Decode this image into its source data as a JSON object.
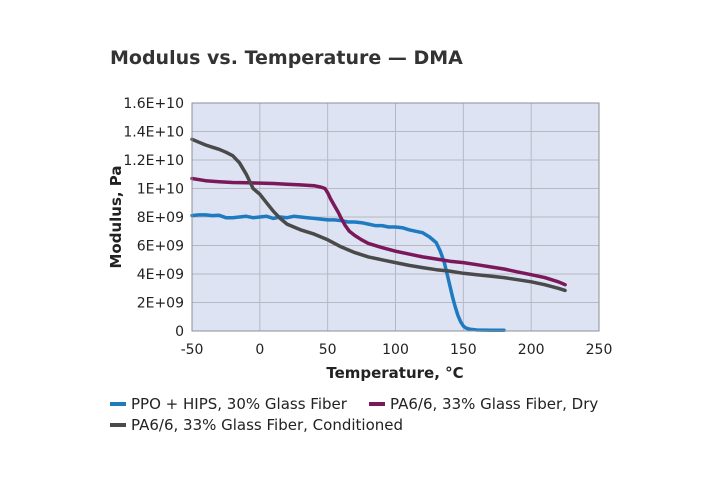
{
  "chart_data": {
    "type": "line",
    "title": "Modulus vs. Temperature — DMA",
    "xlabel": "Temperature, °C",
    "ylabel": "Modulus, Pa",
    "xlim": [
      -50,
      250
    ],
    "ylim": [
      0,
      16000000000
    ],
    "grid": true,
    "legend_position": "bottom",
    "background_color": "#dde3f2",
    "grid_color": "#b5b9c4",
    "x_ticks": [
      -50,
      0,
      50,
      100,
      150,
      200,
      250
    ],
    "x_tick_labels": [
      "-50",
      "0",
      "50",
      "100",
      "150",
      "200",
      "250"
    ],
    "y_ticks": [
      0,
      2000000000,
      4000000000,
      6000000000,
      8000000000,
      10000000000,
      12000000000,
      14000000000,
      16000000000
    ],
    "y_tick_labels": [
      "0",
      "2E+09",
      "4E+09",
      "6E+09",
      "8E+09",
      "1E+10",
      "1.2E+10",
      "1.4E+10",
      "1.6E+10"
    ],
    "series": [
      {
        "name": "PPO + HIPS, 30% Glass Fiber",
        "color": "#1f7bc1",
        "x": [
          -50,
          -45,
          -40,
          -35,
          -30,
          -25,
          -20,
          -15,
          -10,
          -5,
          0,
          5,
          10,
          15,
          20,
          25,
          30,
          35,
          40,
          45,
          50,
          55,
          60,
          65,
          70,
          75,
          80,
          85,
          90,
          95,
          100,
          105,
          110,
          115,
          120,
          125,
          130,
          133,
          136,
          138,
          140,
          142,
          144,
          146,
          148,
          150,
          152,
          155,
          160,
          165,
          170,
          175,
          180
        ],
        "y": [
          8100000000.0,
          8150000000.0,
          8150000000.0,
          8100000000.0,
          8120000000.0,
          7950000000.0,
          7950000000.0,
          8000000000.0,
          8050000000.0,
          7950000000.0,
          8000000000.0,
          8050000000.0,
          7900000000.0,
          8000000000.0,
          7950000000.0,
          8050000000.0,
          8000000000.0,
          7950000000.0,
          7900000000.0,
          7850000000.0,
          7800000000.0,
          7800000000.0,
          7750000000.0,
          7650000000.0,
          7650000000.0,
          7600000000.0,
          7500000000.0,
          7400000000.0,
          7400000000.0,
          7300000000.0,
          7300000000.0,
          7250000000.0,
          7100000000.0,
          7000000000.0,
          6900000000.0,
          6600000000.0,
          6200000000.0,
          5600000000.0,
          4800000000.0,
          4000000000.0,
          3200000000.0,
          2400000000.0,
          1700000000.0,
          1100000000.0,
          650000000.0,
          350000000.0,
          200000000.0,
          120000000.0,
          70000000.0,
          60000000.0,
          50000000.0,
          50000000.0,
          50000000.0
        ]
      },
      {
        "name": "PA6/6, 33% Glass Fiber, Dry",
        "color": "#7b1859",
        "x": [
          -50,
          -40,
          -30,
          -20,
          -10,
          0,
          10,
          20,
          30,
          40,
          45,
          48,
          50,
          52,
          55,
          58,
          60,
          63,
          66,
          70,
          75,
          80,
          90,
          100,
          110,
          120,
          130,
          140,
          150,
          160,
          170,
          180,
          190,
          200,
          210,
          220,
          225
        ],
        "y": [
          10700000000.0,
          10550000000.0,
          10480000000.0,
          10420000000.0,
          10400000000.0,
          10380000000.0,
          10350000000.0,
          10300000000.0,
          10250000000.0,
          10200000000.0,
          10100000000.0,
          10000000000.0,
          9700000000.0,
          9300000000.0,
          8800000000.0,
          8300000000.0,
          7900000000.0,
          7400000000.0,
          7000000000.0,
          6700000000.0,
          6400000000.0,
          6150000000.0,
          5850000000.0,
          5600000000.0,
          5400000000.0,
          5200000000.0,
          5050000000.0,
          4900000000.0,
          4800000000.0,
          4650000000.0,
          4500000000.0,
          4350000000.0,
          4150000000.0,
          3950000000.0,
          3750000000.0,
          3450000000.0,
          3250000000.0
        ]
      },
      {
        "name": "PA6/6, 33% Glass Fiber, Conditioned",
        "color": "#4a4a4a",
        "x": [
          -50,
          -45,
          -40,
          -35,
          -30,
          -25,
          -20,
          -15,
          -10,
          -5,
          0,
          5,
          10,
          15,
          20,
          25,
          30,
          40,
          50,
          60,
          70,
          80,
          90,
          100,
          110,
          120,
          130,
          140,
          150,
          160,
          170,
          180,
          190,
          200,
          210,
          220,
          225
        ],
        "y": [
          13450000000.0,
          13250000000.0,
          13050000000.0,
          12900000000.0,
          12750000000.0,
          12550000000.0,
          12300000000.0,
          11800000000.0,
          11000000000.0,
          10000000000.0,
          9600000000.0,
          9000000000.0,
          8400000000.0,
          7900000000.0,
          7500000000.0,
          7300000000.0,
          7100000000.0,
          6800000000.0,
          6400000000.0,
          5900000000.0,
          5500000000.0,
          5200000000.0,
          5000000000.0,
          4800000000.0,
          4600000000.0,
          4450000000.0,
          4300000000.0,
          4200000000.0,
          4050000000.0,
          3950000000.0,
          3850000000.0,
          3750000000.0,
          3600000000.0,
          3450000000.0,
          3250000000.0,
          3000000000.0,
          2850000000.0
        ]
      }
    ]
  }
}
